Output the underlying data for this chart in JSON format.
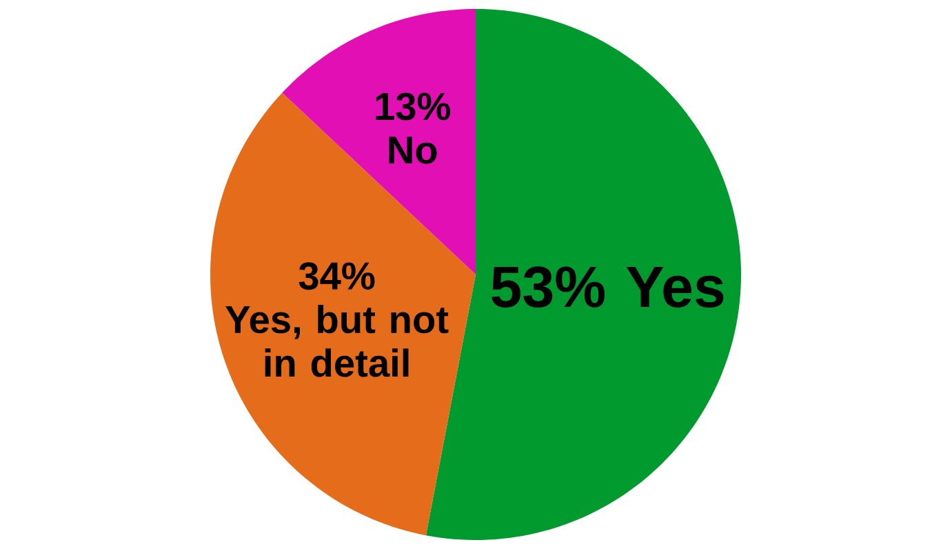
{
  "chart_data": {
    "type": "pie",
    "categories": [
      "Yes",
      "Yes, but not in detail",
      "No"
    ],
    "values": [
      53,
      34,
      13
    ],
    "value_labels": [
      "53%",
      "34%",
      "13%"
    ],
    "colors": [
      "#009a2e",
      "#e46c1a",
      "#e10fb4"
    ]
  }
}
